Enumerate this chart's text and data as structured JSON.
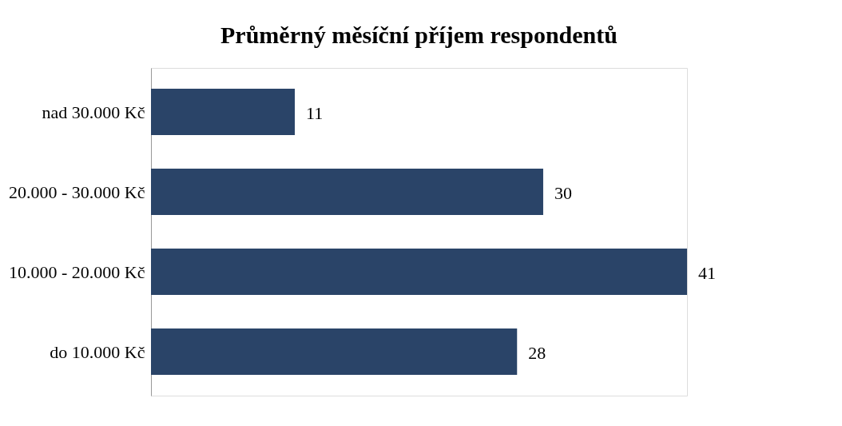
{
  "chart_data": {
    "type": "bar",
    "orientation": "horizontal",
    "title": "Průměrný měsíční příjem respondentů",
    "categories": [
      "nad 30.000 Kč",
      "20.000 - 30.000 Kč",
      "10.000 - 20.000 Kč",
      "do 10.000 Kč"
    ],
    "values": [
      11,
      30,
      41,
      28
    ],
    "color": "#2a4468",
    "data_labels": true
  }
}
